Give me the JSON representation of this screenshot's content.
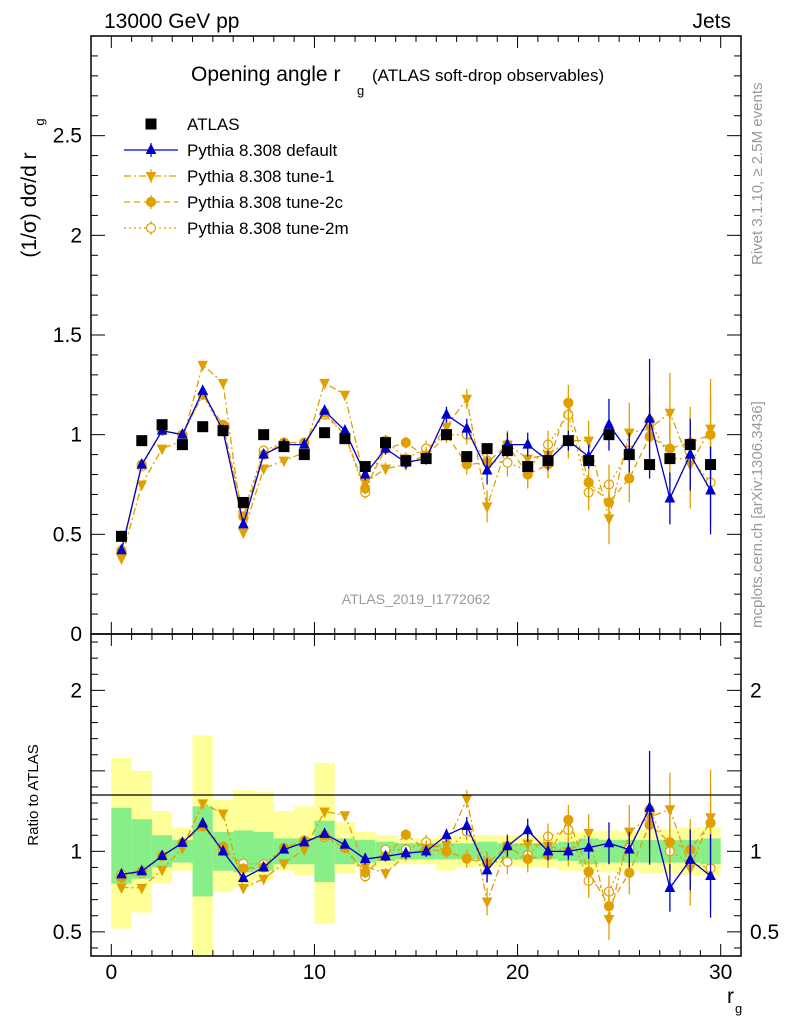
{
  "header": {
    "left": "13000 GeV pp",
    "right": "Jets"
  },
  "title": {
    "main": "Opening angle r",
    "sub": "g",
    "suffix": "(ATLAS soft-drop observables)"
  },
  "side_text": {
    "rivet": "Rivet 3.1.10, ≥ 2.5M events",
    "mcplots": "mcplots.cern.ch [arXiv:1306.3436]"
  },
  "watermark": "ATLAS_2019_I1772062",
  "colors": {
    "data": "#000000",
    "default": "#0000cc",
    "tune": "#e0a000",
    "band_inner": "#88ee88",
    "band_outer": "#ffff99"
  },
  "chart_data": {
    "type": "scatter",
    "xlabel": "r",
    "xlabel_sub": "g",
    "ylabel_main": "(1/σ) dσ/d r",
    "ylabel_main_sub": "g",
    "ylabel_ratio": "Ratio to ATLAS",
    "xlim": [
      -1,
      31
    ],
    "ylim_main": [
      0,
      3
    ],
    "ylim_ratio": [
      0.35,
      2.35
    ],
    "x_ticks": [
      "0",
      "10",
      "20",
      "30"
    ],
    "y_ticks_main": [
      "0",
      "0.5",
      "1",
      "1.5",
      "2",
      "2.5"
    ],
    "y_ticks_ratio": [
      "0.5",
      "1",
      "2"
    ],
    "legend_position": "top-left",
    "x": [
      0.5,
      1.5,
      2.5,
      3.5,
      4.5,
      5.5,
      6.5,
      7.5,
      8.5,
      9.5,
      10.5,
      11.5,
      12.5,
      13.5,
      14.5,
      15.5,
      16.5,
      17.5,
      18.5,
      19.5,
      20.5,
      21.5,
      22.5,
      23.5,
      24.5,
      25.5,
      26.5,
      27.5,
      28.5,
      29.5
    ],
    "series": [
      {
        "name": "ATLAS",
        "style": "data",
        "values": [
          0.49,
          0.97,
          1.05,
          0.95,
          1.04,
          1.02,
          0.66,
          1.0,
          0.94,
          0.9,
          1.01,
          0.98,
          0.84,
          0.96,
          0.87,
          0.88,
          1.0,
          0.89,
          0.93,
          0.92,
          0.84,
          0.87,
          0.97,
          0.87,
          1.0,
          0.9,
          0.85,
          0.88,
          0.95,
          0.85
        ]
      },
      {
        "name": "Pythia 8.308 default",
        "style": "default",
        "values": [
          0.42,
          0.85,
          1.02,
          1.0,
          1.22,
          1.02,
          0.55,
          0.9,
          0.95,
          0.95,
          1.12,
          1.02,
          0.8,
          0.93,
          0.86,
          0.88,
          1.1,
          1.03,
          0.82,
          0.95,
          0.95,
          0.87,
          0.97,
          0.89,
          1.05,
          0.91,
          1.08,
          0.68,
          0.9,
          0.72
        ],
        "errors": [
          0.01,
          0.01,
          0.01,
          0.01,
          0.01,
          0.01,
          0.01,
          0.01,
          0.01,
          0.01,
          0.01,
          0.02,
          0.03,
          0.03,
          0.03,
          0.03,
          0.04,
          0.05,
          0.07,
          0.06,
          0.06,
          0.05,
          0.05,
          0.06,
          0.13,
          0.1,
          0.3,
          0.13,
          0.18,
          0.22
        ]
      },
      {
        "name": "Pythia 8.308 tune-1",
        "style": "tune1",
        "values": [
          0.38,
          0.75,
          0.93,
          0.97,
          1.35,
          1.26,
          0.51,
          0.83,
          0.87,
          0.91,
          1.26,
          1.2,
          0.76,
          0.83,
          0.85,
          0.9,
          1.04,
          1.18,
          0.64,
          0.95,
          0.88,
          0.9,
          0.97,
          0.97,
          0.58,
          1.01,
          1.03,
          1.11,
          0.85,
          1.03
        ],
        "errors": [
          0.01,
          0.01,
          0.01,
          0.01,
          0.01,
          0.01,
          0.01,
          0.01,
          0.01,
          0.01,
          0.01,
          0.02,
          0.03,
          0.03,
          0.03,
          0.04,
          0.05,
          0.05,
          0.08,
          0.07,
          0.08,
          0.08,
          0.09,
          0.1,
          0.13,
          0.15,
          0.17,
          0.2,
          0.22,
          0.25
        ]
      },
      {
        "name": "Pythia 8.308 tune-2c",
        "style": "tune2c",
        "values": [
          0.41,
          0.85,
          1.02,
          1.0,
          1.2,
          1.05,
          0.59,
          0.9,
          0.96,
          0.96,
          1.11,
          1.0,
          0.73,
          0.93,
          0.96,
          0.89,
          1.0,
          0.85,
          0.86,
          0.95,
          0.8,
          0.85,
          1.16,
          0.76,
          0.66,
          0.78,
          0.99,
          0.93,
          0.96,
          1.0
        ],
        "errors": [
          0.01,
          0.01,
          0.01,
          0.01,
          0.01,
          0.01,
          0.01,
          0.01,
          0.01,
          0.01,
          0.01,
          0.02,
          0.03,
          0.03,
          0.03,
          0.04,
          0.04,
          0.05,
          0.06,
          0.07,
          0.07,
          0.07,
          0.09,
          0.1,
          0.11,
          0.12,
          0.14,
          0.16,
          0.18,
          0.2
        ]
      },
      {
        "name": "Pythia 8.308 tune-2m",
        "style": "tune2m",
        "values": [
          0.42,
          0.84,
          1.02,
          1.0,
          1.2,
          1.02,
          0.61,
          0.92,
          0.96,
          0.96,
          1.1,
          1.0,
          0.71,
          0.97,
          0.88,
          0.93,
          1.0,
          1.0,
          0.87,
          0.86,
          0.82,
          0.95,
          1.1,
          0.71,
          0.75,
          0.92,
          1.07,
          0.88,
          0.88,
          0.76
        ],
        "errors": [
          0.01,
          0.01,
          0.01,
          0.01,
          0.01,
          0.01,
          0.01,
          0.01,
          0.01,
          0.01,
          0.01,
          0.02,
          0.03,
          0.03,
          0.03,
          0.04,
          0.04,
          0.05,
          0.06,
          0.07,
          0.07,
          0.07,
          0.08,
          0.09,
          0.1,
          0.12,
          0.14,
          0.16,
          0.18,
          0.2
        ]
      }
    ],
    "ratio_band_inner": [
      [
        0.8,
        1.27
      ],
      [
        0.83,
        1.2
      ],
      [
        0.9,
        1.1
      ],
      [
        0.93,
        1.07
      ],
      [
        0.72,
        1.28
      ],
      [
        0.88,
        1.12
      ],
      [
        0.87,
        1.13
      ],
      [
        0.88,
        1.12
      ],
      [
        0.92,
        1.08
      ],
      [
        0.92,
        1.08
      ],
      [
        0.81,
        1.19
      ],
      [
        0.92,
        1.08
      ],
      [
        0.93,
        1.07
      ],
      [
        0.94,
        1.06
      ],
      [
        0.95,
        1.05
      ],
      [
        0.95,
        1.05
      ],
      [
        0.95,
        1.05
      ],
      [
        0.95,
        1.05
      ],
      [
        0.94,
        1.06
      ],
      [
        0.95,
        1.05
      ],
      [
        0.95,
        1.05
      ],
      [
        0.95,
        1.05
      ],
      [
        0.94,
        1.06
      ],
      [
        0.92,
        1.08
      ],
      [
        0.93,
        1.07
      ],
      [
        0.93,
        1.07
      ],
      [
        0.93,
        1.07
      ],
      [
        0.93,
        1.07
      ],
      [
        0.93,
        1.07
      ],
      [
        0.92,
        1.08
      ]
    ],
    "ratio_band_outer": [
      [
        0.52,
        1.58
      ],
      [
        0.62,
        1.5
      ],
      [
        0.8,
        1.25
      ],
      [
        0.88,
        1.15
      ],
      [
        0.3,
        1.72
      ],
      [
        0.75,
        1.32
      ],
      [
        0.78,
        1.38
      ],
      [
        0.82,
        1.37
      ],
      [
        0.88,
        1.25
      ],
      [
        0.85,
        1.28
      ],
      [
        0.55,
        1.55
      ],
      [
        0.86,
        1.18
      ],
      [
        0.9,
        1.12
      ],
      [
        0.9,
        1.1
      ],
      [
        0.92,
        1.08
      ],
      [
        0.92,
        1.08
      ],
      [
        0.88,
        1.1
      ],
      [
        0.9,
        1.1
      ],
      [
        0.9,
        1.1
      ],
      [
        0.91,
        1.1
      ],
      [
        0.9,
        1.1
      ],
      [
        0.9,
        1.1
      ],
      [
        0.88,
        1.12
      ],
      [
        0.88,
        1.12
      ],
      [
        0.87,
        1.13
      ],
      [
        0.88,
        1.12
      ],
      [
        0.86,
        1.14
      ],
      [
        0.86,
        1.14
      ],
      [
        0.85,
        1.15
      ],
      [
        0.85,
        1.15
      ]
    ]
  }
}
